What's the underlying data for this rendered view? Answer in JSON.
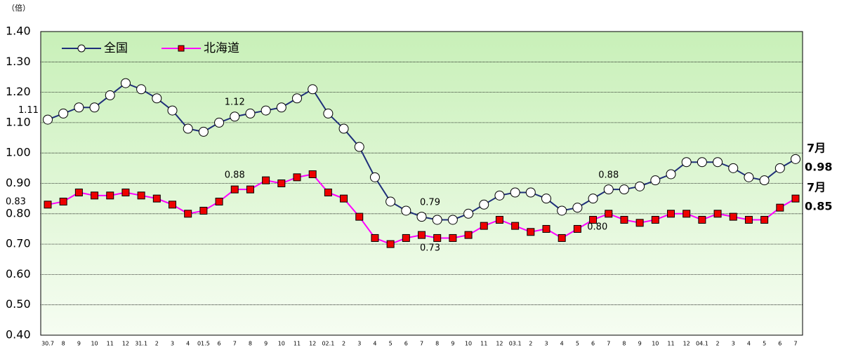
{
  "chart_data": {
    "type": "line",
    "unit_label": "（倍）",
    "categories": [
      "30.7",
      "8",
      "9",
      "10",
      "11",
      "12",
      "31.1",
      "2",
      "3",
      "4",
      "01.5",
      "6",
      "7",
      "8",
      "9",
      "10",
      "11",
      "12",
      "02.1",
      "2",
      "3",
      "4",
      "5",
      "6",
      "7",
      "8",
      "9",
      "10",
      "11",
      "12",
      "03.1",
      "2",
      "3",
      "4",
      "5",
      "6",
      "7",
      "8",
      "9",
      "10",
      "11",
      "12",
      "04.1",
      "2",
      "3",
      "4",
      "5",
      "6",
      "7"
    ],
    "series": [
      {
        "name": "全国",
        "color": "#1f2f7a",
        "marker": "circle",
        "end_label": "7月",
        "values": [
          1.11,
          1.13,
          1.15,
          1.15,
          1.19,
          1.23,
          1.21,
          1.18,
          1.14,
          1.08,
          1.07,
          1.1,
          1.12,
          1.13,
          1.14,
          1.15,
          1.18,
          1.21,
          1.13,
          1.08,
          1.02,
          0.92,
          0.84,
          0.81,
          0.79,
          0.78,
          0.78,
          0.8,
          0.83,
          0.86,
          0.87,
          0.87,
          0.85,
          0.81,
          0.82,
          0.85,
          0.88,
          0.88,
          0.89,
          0.91,
          0.93,
          0.97,
          0.97,
          0.97,
          0.95,
          0.92,
          0.91,
          0.95,
          0.98
        ],
        "value_labels": [
          "1.11",
          null,
          null,
          null,
          null,
          null,
          null,
          null,
          null,
          null,
          null,
          null,
          "1.12",
          null,
          null,
          null,
          null,
          null,
          null,
          null,
          null,
          null,
          null,
          null,
          "0.79",
          null,
          null,
          null,
          null,
          null,
          null,
          null,
          null,
          null,
          null,
          null,
          "0.88",
          null,
          null,
          null,
          null,
          null,
          null,
          null,
          null,
          null,
          null,
          null,
          "0.98"
        ]
      },
      {
        "name": "北海道",
        "color": "#ff00ff",
        "marker": "square",
        "end_label": "7月",
        "values": [
          0.83,
          0.84,
          0.87,
          0.86,
          0.86,
          0.87,
          0.86,
          0.85,
          0.83,
          0.8,
          0.81,
          0.84,
          0.88,
          0.88,
          0.91,
          0.9,
          0.92,
          0.93,
          0.87,
          0.85,
          0.79,
          0.72,
          0.7,
          0.72,
          0.73,
          0.72,
          0.72,
          0.73,
          0.76,
          0.78,
          0.76,
          0.74,
          0.75,
          0.72,
          0.75,
          0.78,
          0.8,
          0.78,
          0.77,
          0.78,
          0.8,
          0.8,
          0.78,
          0.8,
          0.79,
          0.78,
          0.78,
          0.82,
          0.85
        ],
        "value_labels": [
          "0.83",
          null,
          null,
          null,
          null,
          null,
          null,
          null,
          null,
          null,
          null,
          null,
          "0.88",
          null,
          null,
          null,
          null,
          null,
          null,
          null,
          null,
          null,
          null,
          null,
          "0.73",
          null,
          null,
          null,
          null,
          null,
          null,
          null,
          null,
          null,
          null,
          null,
          "0.80",
          null,
          null,
          null,
          null,
          null,
          null,
          null,
          null,
          null,
          null,
          null,
          "0.85"
        ]
      }
    ],
    "ylim": [
      0.4,
      1.4
    ],
    "yticks": [
      {
        "value": 0.4,
        "label": "0.40"
      },
      {
        "value": 0.5,
        "label": "0.50"
      },
      {
        "value": 0.6,
        "label": "0.60"
      },
      {
        "value": 0.7,
        "label": "0.70"
      },
      {
        "value": 0.8,
        "label": "0.80"
      },
      {
        "value": 0.9,
        "label": "0.90"
      },
      {
        "value": 1.0,
        "label": "1.00"
      },
      {
        "value": 1.1,
        "label": "1.10"
      },
      {
        "value": 1.2,
        "label": "1.20"
      },
      {
        "value": 1.3,
        "label": "1.30"
      },
      {
        "value": 1.4,
        "label": "1.40"
      }
    ],
    "grid": true,
    "legend": "top-left"
  }
}
